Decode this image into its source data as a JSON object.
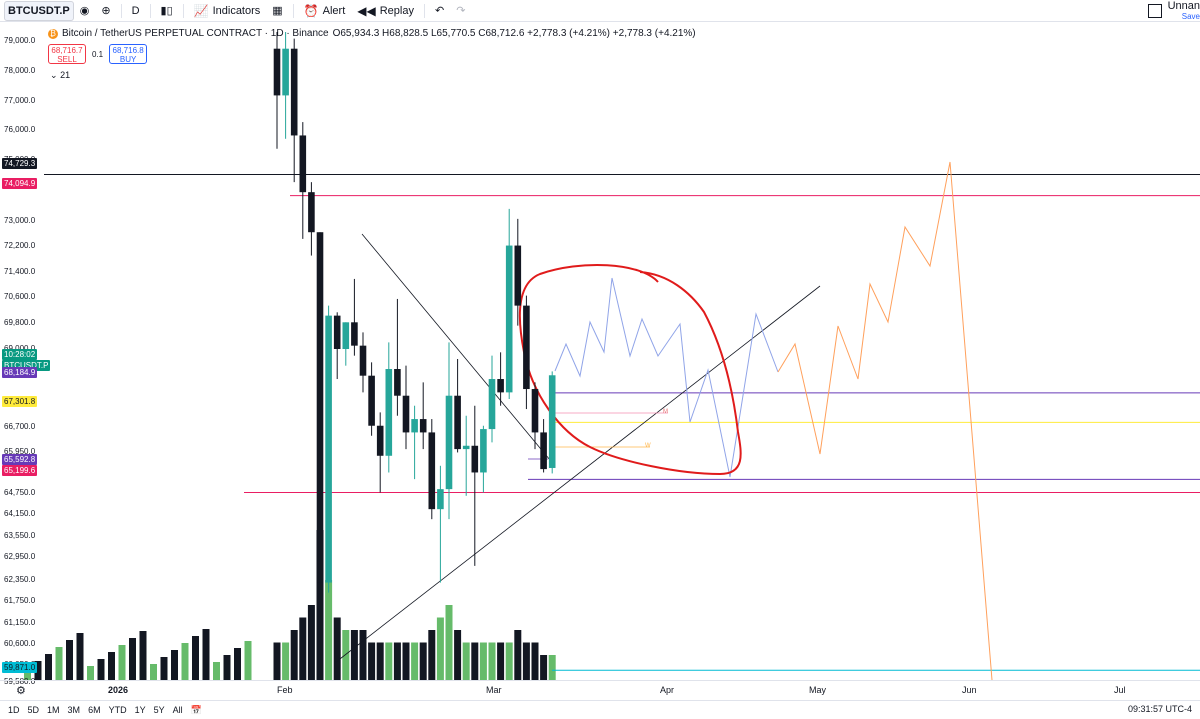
{
  "toolbar": {
    "symbol": "BTCUSDT.P",
    "interval": "D",
    "indicators_label": "Indicators",
    "alert_label": "Alert",
    "replay_label": "Replay",
    "layout_name": "Unnan",
    "saved_label": "Save",
    "icons": [
      "eye-icon",
      "add-symbol-icon",
      "bar-style-icon",
      "indicators-icon",
      "templates-icon",
      "alert-icon",
      "replay-icon",
      "undo-icon",
      "redo-icon"
    ]
  },
  "legend": {
    "title": "Bitcoin / TetherUS PERPETUAL CONTRACT · 1D · Binance",
    "ohlc": "O65,934.3 H68,828.5 L65,770.5 C68,712.6 +2,778.3 (+4.21%) +2,778.3 (+4.21%)",
    "sell_price": "68,716.7",
    "sell_label": "SELL",
    "spread": "0.1",
    "buy_price": "68,716.8",
    "buy_label": "BUY",
    "indicator_count": "21"
  },
  "price_axis": {
    "labels": [
      "79,000.0",
      "78,000.0",
      "77,000.0",
      "76,000.0",
      "75,000.0",
      "73,000.0",
      "72,200.0",
      "71,400.0",
      "70,600.0",
      "69,800.0",
      "69,000.0",
      "67,450.0",
      "66,700.0",
      "65,950.0",
      "64,750.0",
      "64,150.0",
      "63,550.0",
      "62,950.0",
      "62,350.0",
      "61,750.0",
      "61,150.0",
      "60,600.0",
      "60,050.0",
      "59,580.0"
    ],
    "tags": [
      {
        "text": "74,729.3",
        "bg": "#131722",
        "fg": "#ffffff"
      },
      {
        "text": "74,094.9",
        "bg": "#e91e63",
        "fg": "#ffffff"
      },
      {
        "text": "10:28:02",
        "bg": "#089981",
        "fg": "#ffffff"
      },
      {
        "text": "BTCUSDT.P",
        "bg": "#089981",
        "fg": "#ffffff"
      },
      {
        "text": "68,184.9",
        "bg": "#673ab7",
        "fg": "#ffffff"
      },
      {
        "text": "67,301.8",
        "bg": "#ffeb3b",
        "fg": "#131722"
      },
      {
        "text": "65,592.8",
        "bg": "#673ab7",
        "fg": "#ffffff"
      },
      {
        "text": "65,199.6",
        "bg": "#e91e63",
        "fg": "#ffffff"
      },
      {
        "text": "59,871.0",
        "bg": "#00bcd4",
        "fg": "#131722"
      }
    ]
  },
  "time_axis": {
    "labels": [
      {
        "text": "2026",
        "bold": true
      },
      {
        "text": "Feb",
        "bold": false
      },
      {
        "text": "Mar",
        "bold": false
      },
      {
        "text": "Apr",
        "bold": false
      },
      {
        "text": "May",
        "bold": false
      },
      {
        "text": "Jun",
        "bold": false
      },
      {
        "text": "Jul",
        "bold": false
      }
    ]
  },
  "bottom_bar": {
    "ranges": [
      "1D",
      "5D",
      "1M",
      "3M",
      "6M",
      "YTD",
      "1Y",
      "5Y",
      "All"
    ],
    "clock": "09:31:57 UTC-4"
  },
  "colors": {
    "up": "#26a69a",
    "down": "#131722",
    "vol_up": "#66bb6a",
    "vol_down": "#131722",
    "red_ellipse": "#e01b1b",
    "blue_projection": "#90a4e8",
    "orange_projection": "#ffa05c"
  },
  "chart_data": {
    "type": "candlestick",
    "candles": [
      {
        "o": 78500,
        "h": 79000,
        "l": 75500,
        "c": 77100
      },
      {
        "o": 77100,
        "h": 79000,
        "l": 75800,
        "c": 78500
      },
      {
        "o": 78500,
        "h": 78800,
        "l": 74500,
        "c": 75900
      },
      {
        "o": 75900,
        "h": 76300,
        "l": 72800,
        "c": 74200
      },
      {
        "o": 74200,
        "h": 74500,
        "l": 72300,
        "c": 73000
      },
      {
        "o": 73000,
        "h": 73000,
        "l": 60000,
        "c": 62500
      },
      {
        "o": 62500,
        "h": 70800,
        "l": 62200,
        "c": 70500
      },
      {
        "o": 70500,
        "h": 70600,
        "l": 68600,
        "c": 69500
      },
      {
        "o": 69500,
        "h": 70300,
        "l": 69000,
        "c": 70300
      },
      {
        "o": 70300,
        "h": 71600,
        "l": 69300,
        "c": 69600
      },
      {
        "o": 69600,
        "h": 70000,
        "l": 68200,
        "c": 68700
      },
      {
        "o": 68700,
        "h": 69100,
        "l": 66900,
        "c": 67200
      },
      {
        "o": 67200,
        "h": 67600,
        "l": 65200,
        "c": 66300
      },
      {
        "o": 66300,
        "h": 69700,
        "l": 65800,
        "c": 68900
      },
      {
        "o": 68900,
        "h": 71000,
        "l": 67500,
        "c": 68100
      },
      {
        "o": 68100,
        "h": 69000,
        "l": 66500,
        "c": 67000
      },
      {
        "o": 67000,
        "h": 67800,
        "l": 65600,
        "c": 67400
      },
      {
        "o": 67400,
        "h": 68500,
        "l": 66500,
        "c": 67000
      },
      {
        "o": 67000,
        "h": 67400,
        "l": 64400,
        "c": 64700
      },
      {
        "o": 64700,
        "h": 66000,
        "l": 62500,
        "c": 65300
      },
      {
        "o": 65300,
        "h": 69700,
        "l": 64400,
        "c": 68100
      },
      {
        "o": 68100,
        "h": 69200,
        "l": 66400,
        "c": 66500
      },
      {
        "o": 66500,
        "h": 67500,
        "l": 65100,
        "c": 66600
      },
      {
        "o": 66600,
        "h": 67800,
        "l": 63000,
        "c": 65800
      },
      {
        "o": 65800,
        "h": 67200,
        "l": 65200,
        "c": 67100
      },
      {
        "o": 67100,
        "h": 69300,
        "l": 66700,
        "c": 68600
      },
      {
        "o": 68600,
        "h": 69400,
        "l": 67800,
        "c": 68200
      },
      {
        "o": 68200,
        "h": 73700,
        "l": 68000,
        "c": 72600
      },
      {
        "o": 72600,
        "h": 73400,
        "l": 70200,
        "c": 70800
      },
      {
        "o": 70800,
        "h": 71100,
        "l": 67700,
        "c": 68300
      },
      {
        "o": 68300,
        "h": 68500,
        "l": 66500,
        "c": 67000
      },
      {
        "o": 67000,
        "h": 67400,
        "l": 65800,
        "c": 65900
      },
      {
        "o": 65934.3,
        "h": 68828.5,
        "l": 65770.5,
        "c": 68712.6
      }
    ],
    "volumes": [
      3,
      3,
      4,
      5,
      6,
      12,
      8,
      5,
      4,
      4,
      4,
      3,
      3,
      3,
      3,
      3,
      3,
      3,
      4,
      5,
      6,
      4,
      3,
      3,
      3,
      3,
      3,
      3,
      4,
      3,
      3,
      2,
      2
    ],
    "horizontal_levels": [
      {
        "price": 74729.3,
        "color": "#131722"
      },
      {
        "price": 74094.9,
        "color": "#e91e63"
      },
      {
        "price": 68184.9,
        "color": "#673ab7"
      },
      {
        "price": 67301.8,
        "color": "#ffeb3b"
      },
      {
        "price": 65592.8,
        "color": "#673ab7"
      },
      {
        "price": 65199.6,
        "color": "#e91e63"
      },
      {
        "price": 59871.0,
        "color": "#00bcd4"
      }
    ],
    "ylim": [
      59580,
      79300
    ],
    "x_labels": [
      "2026",
      "Feb",
      "Mar",
      "Apr",
      "May",
      "Jun",
      "Jul"
    ]
  }
}
